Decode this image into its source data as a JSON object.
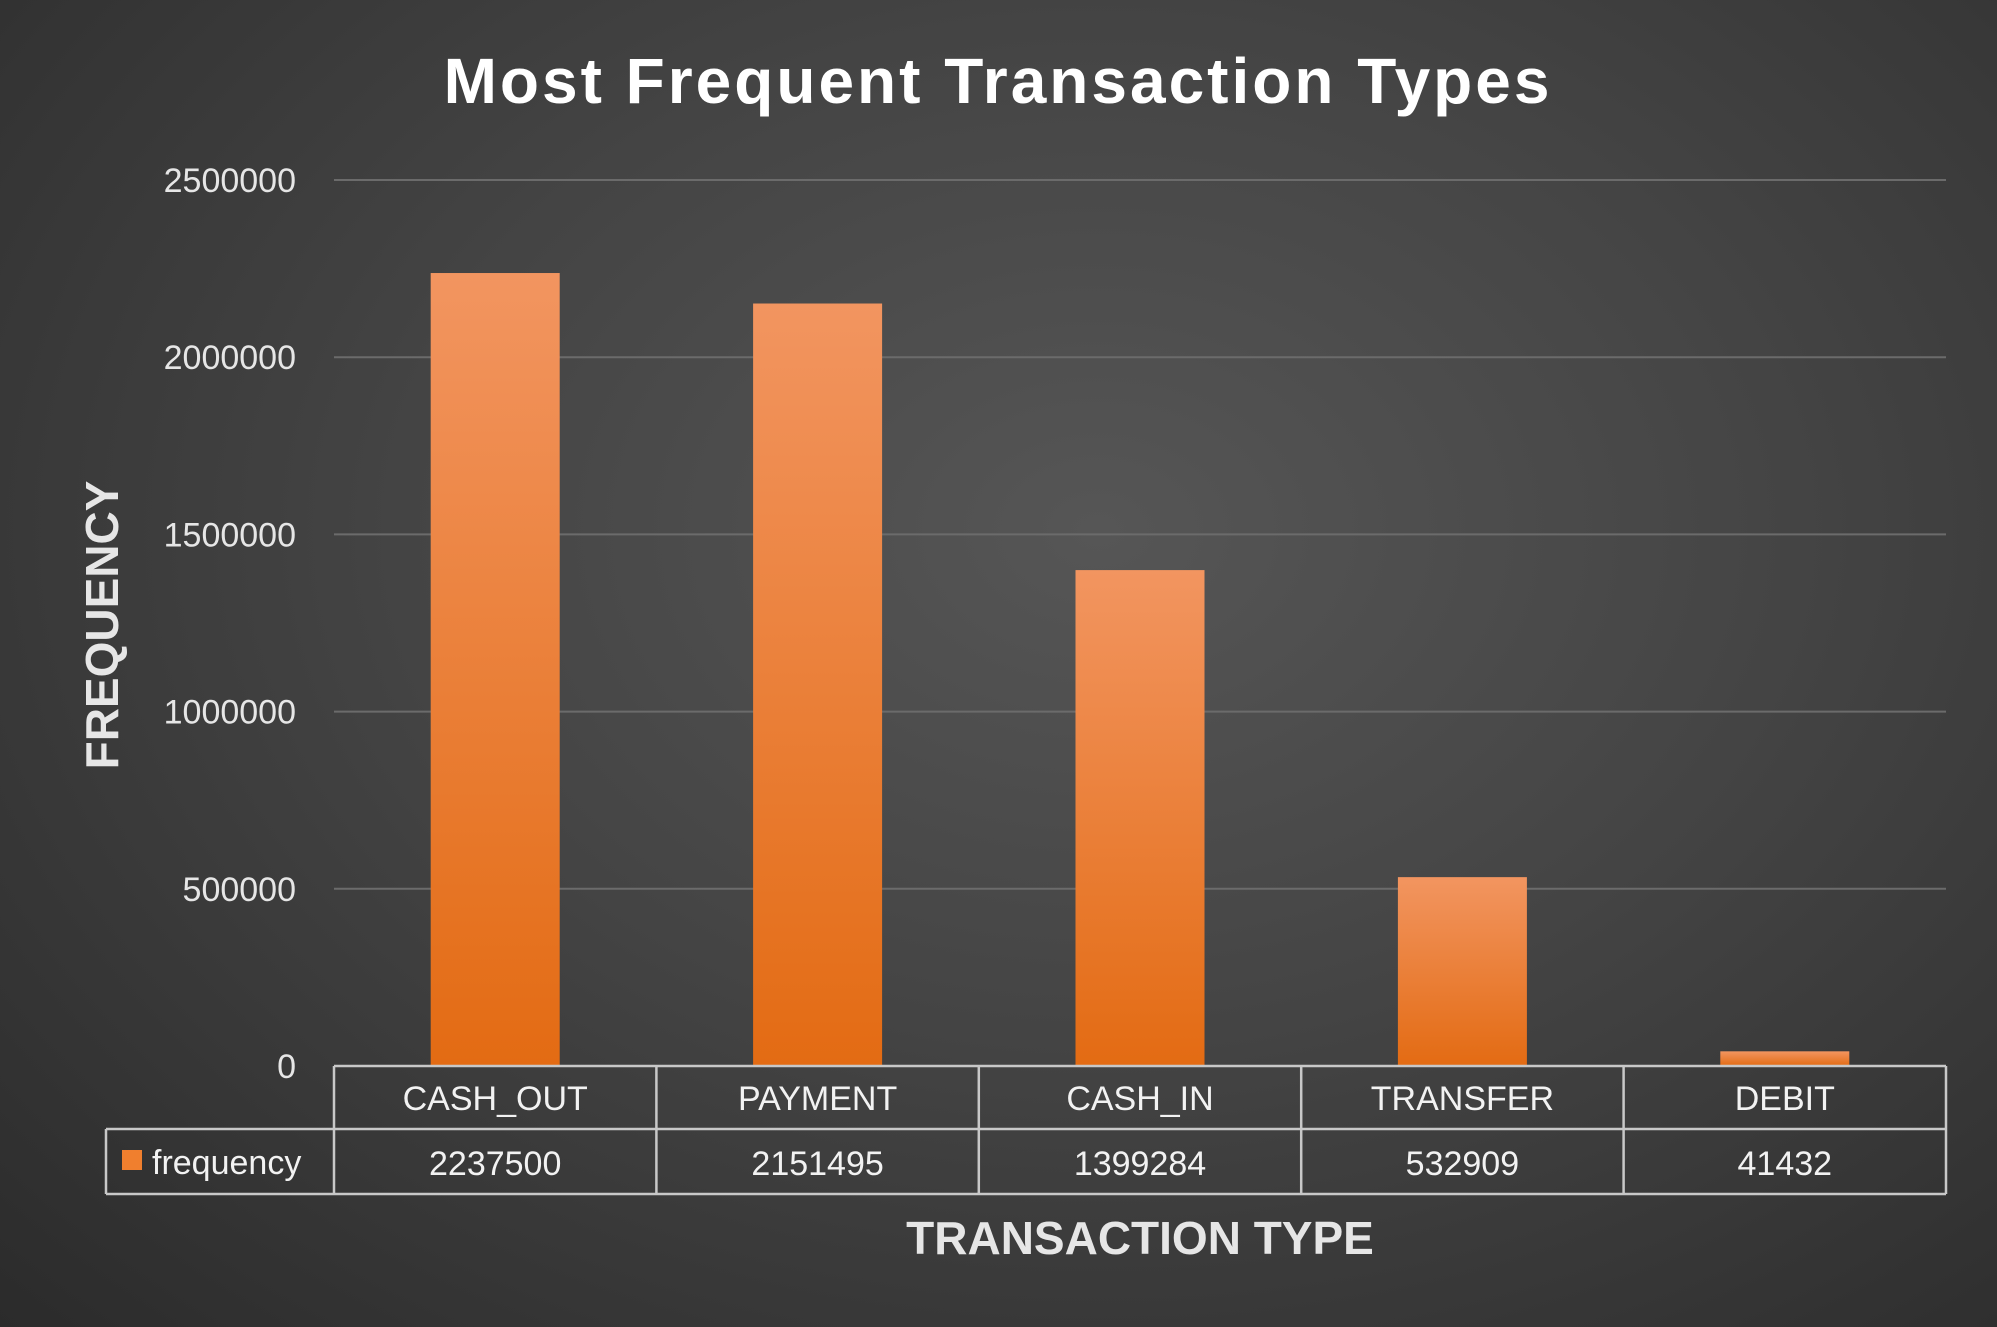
{
  "colors": {
    "bar_top": "#f29560",
    "bar_bottom": "#e36b13",
    "grid": "#6b6b6b",
    "table_line": "#c8c8c8",
    "legend_key": "#f07f2e"
  },
  "chart_data": {
    "type": "bar",
    "title": "Most Frequent Transaction Types",
    "xlabel": "TRANSACTION TYPE",
    "ylabel": "FREQUENCY",
    "categories": [
      "CASH_OUT",
      "PAYMENT",
      "CASH_IN",
      "TRANSFER",
      "DEBIT"
    ],
    "series": [
      {
        "name": "frequency",
        "values": [
          2237500,
          2151495,
          1399284,
          532909,
          41432
        ]
      }
    ],
    "ylim": [
      0,
      2500000
    ],
    "yticks": [
      "0",
      "500000",
      "1000000",
      "1500000",
      "2000000",
      "2500000"
    ],
    "grid": true,
    "legend": "data-table"
  }
}
